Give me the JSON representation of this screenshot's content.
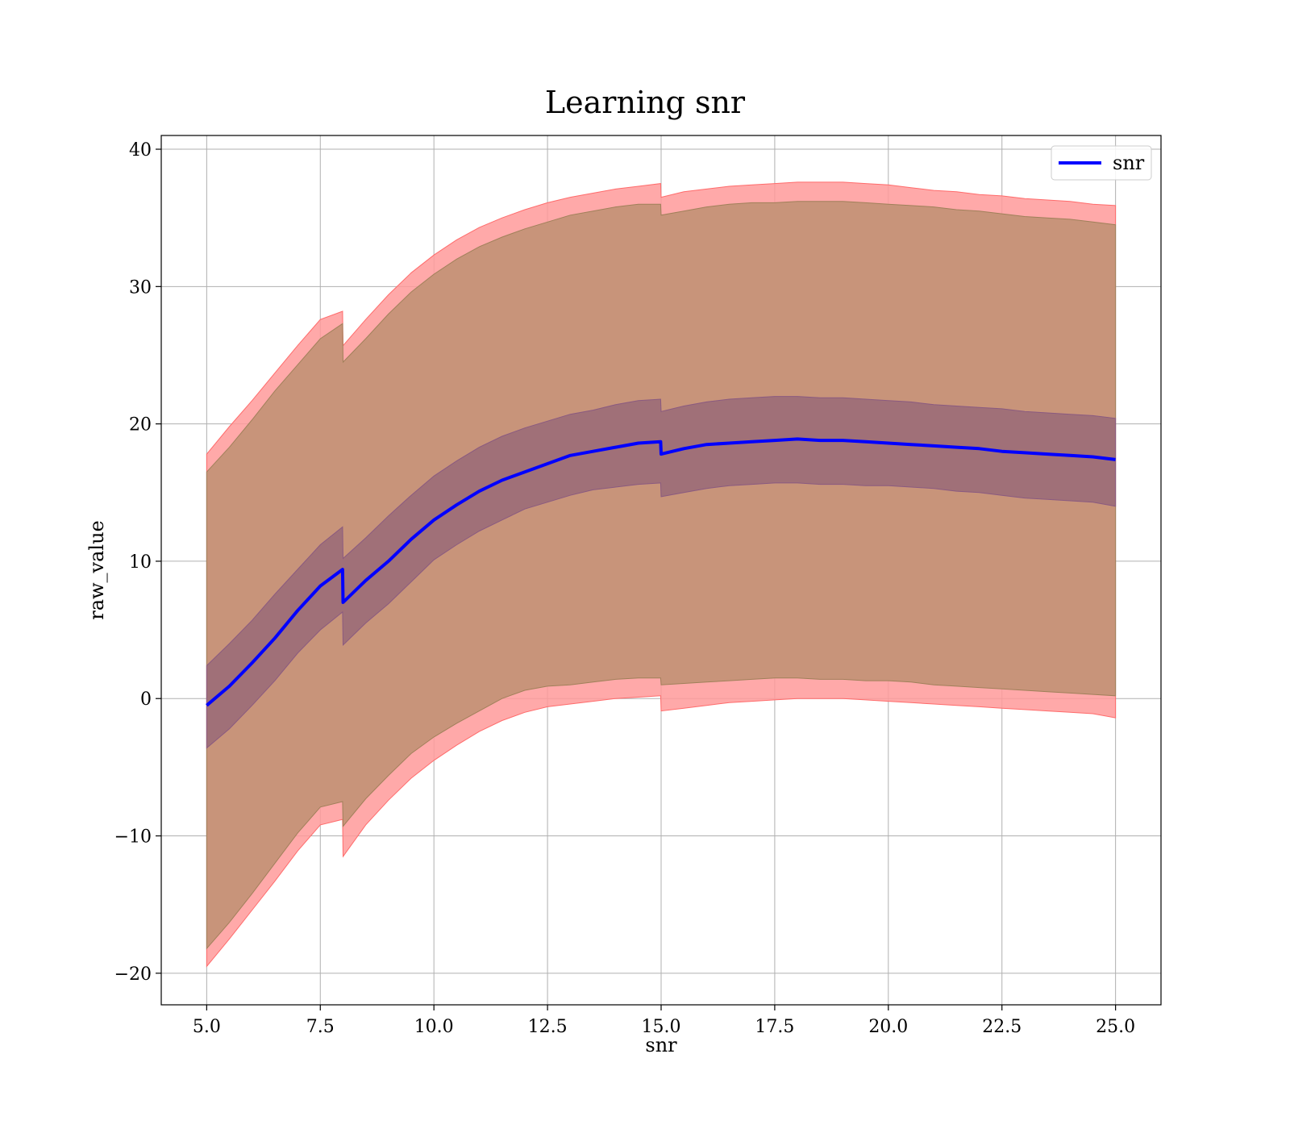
{
  "chart_data": {
    "type": "line",
    "title": "Learning snr",
    "xlabel": "snr",
    "ylabel": "raw_value",
    "xlim": [
      4.0,
      26.0
    ],
    "ylim": [
      -22.3,
      41
    ],
    "x_ticks": [
      5.0,
      7.5,
      10.0,
      12.5,
      15.0,
      17.5,
      20.0,
      22.5,
      25.0
    ],
    "x_tick_labels": [
      "5.0",
      "7.5",
      "10.0",
      "12.5",
      "15.0",
      "17.5",
      "20.0",
      "22.5",
      "25.0"
    ],
    "y_ticks": [
      -20,
      -10,
      0,
      10,
      20,
      30,
      40
    ],
    "y_tick_labels": [
      "−20",
      "−10",
      "0",
      "10",
      "20",
      "30",
      "40"
    ],
    "grid": true,
    "legend": {
      "position": "top-right",
      "entries": [
        "snr"
      ]
    },
    "colors": {
      "mean_line": "#0000ff",
      "outer_band": "#ff9a9a",
      "mid_band": "#c8947a",
      "inner_band": "#a07078",
      "grid": "#b0b0b0"
    },
    "series": [
      {
        "name": "snr",
        "x": [
          5.0,
          5.5,
          6.0,
          6.5,
          7.0,
          7.5,
          7.99,
          8.0,
          8.5,
          9.0,
          9.5,
          10.0,
          10.5,
          11.0,
          11.5,
          12.0,
          12.5,
          13.0,
          13.5,
          14.0,
          14.5,
          14.99,
          15.0,
          15.5,
          16.0,
          16.5,
          17.0,
          17.5,
          18.0,
          18.5,
          19.0,
          19.5,
          20.0,
          20.5,
          21.0,
          21.5,
          22.0,
          22.5,
          23.0,
          23.5,
          24.0,
          24.5,
          25.0
        ],
        "mean": [
          -0.5,
          0.9,
          2.6,
          4.4,
          6.4,
          8.2,
          9.4,
          7.0,
          8.6,
          10.0,
          11.6,
          13.0,
          14.1,
          15.1,
          15.9,
          16.5,
          17.1,
          17.7,
          18.0,
          18.3,
          18.6,
          18.7,
          17.8,
          18.2,
          18.5,
          18.6,
          18.7,
          18.8,
          18.9,
          18.8,
          18.8,
          18.7,
          18.6,
          18.5,
          18.4,
          18.3,
          18.2,
          18.0,
          17.9,
          17.8,
          17.7,
          17.6,
          17.4
        ],
        "inner_lower": [
          -3.6,
          -2.2,
          -0.5,
          1.3,
          3.3,
          5.0,
          6.3,
          3.9,
          5.5,
          6.9,
          8.5,
          10.1,
          11.2,
          12.2,
          13.0,
          13.8,
          14.3,
          14.8,
          15.2,
          15.4,
          15.6,
          15.7,
          14.7,
          15.0,
          15.3,
          15.5,
          15.6,
          15.7,
          15.7,
          15.6,
          15.6,
          15.5,
          15.5,
          15.4,
          15.3,
          15.1,
          15.0,
          14.8,
          14.6,
          14.5,
          14.4,
          14.3,
          14.0
        ],
        "inner_upper": [
          2.4,
          4.0,
          5.7,
          7.6,
          9.4,
          11.2,
          12.5,
          10.2,
          11.7,
          13.3,
          14.8,
          16.2,
          17.3,
          18.3,
          19.1,
          19.7,
          20.2,
          20.7,
          21.0,
          21.4,
          21.7,
          21.8,
          20.9,
          21.3,
          21.6,
          21.8,
          21.9,
          22.0,
          22.0,
          21.9,
          21.9,
          21.8,
          21.7,
          21.6,
          21.4,
          21.3,
          21.2,
          21.1,
          20.9,
          20.8,
          20.7,
          20.6,
          20.4
        ],
        "mid_lower": [
          -18.2,
          -16.3,
          -14.2,
          -12.0,
          -9.8,
          -7.9,
          -7.5,
          -9.3,
          -7.3,
          -5.6,
          -4.0,
          -2.8,
          -1.8,
          -0.9,
          0.0,
          0.6,
          0.9,
          1.0,
          1.2,
          1.4,
          1.5,
          1.5,
          1.0,
          1.1,
          1.2,
          1.3,
          1.4,
          1.5,
          1.5,
          1.4,
          1.4,
          1.3,
          1.3,
          1.2,
          1.0,
          0.9,
          0.8,
          0.7,
          0.6,
          0.5,
          0.4,
          0.3,
          0.2
        ],
        "mid_upper": [
          16.5,
          18.3,
          20.3,
          22.4,
          24.3,
          26.2,
          27.3,
          24.5,
          26.2,
          28.0,
          29.6,
          30.9,
          32.0,
          32.9,
          33.6,
          34.2,
          34.7,
          35.2,
          35.5,
          35.8,
          36.0,
          36.0,
          35.2,
          35.5,
          35.8,
          36.0,
          36.1,
          36.1,
          36.2,
          36.2,
          36.2,
          36.1,
          36.0,
          35.9,
          35.8,
          35.6,
          35.5,
          35.3,
          35.1,
          35.0,
          34.9,
          34.7,
          34.5
        ],
        "outer_lower": [
          -19.5,
          -17.5,
          -15.4,
          -13.3,
          -11.1,
          -9.2,
          -8.8,
          -11.5,
          -9.2,
          -7.4,
          -5.8,
          -4.5,
          -3.4,
          -2.4,
          -1.6,
          -1.0,
          -0.6,
          -0.4,
          -0.2,
          0.0,
          0.1,
          0.2,
          -0.9,
          -0.7,
          -0.5,
          -0.3,
          -0.2,
          -0.1,
          0.0,
          0.0,
          0.0,
          -0.1,
          -0.2,
          -0.3,
          -0.4,
          -0.5,
          -0.6,
          -0.7,
          -0.8,
          -0.9,
          -1.0,
          -1.1,
          -1.4
        ],
        "outer_upper": [
          17.8,
          19.8,
          21.7,
          23.7,
          25.7,
          27.6,
          28.2,
          25.7,
          27.6,
          29.4,
          31.0,
          32.3,
          33.4,
          34.3,
          35.0,
          35.6,
          36.1,
          36.5,
          36.8,
          37.1,
          37.3,
          37.5,
          36.5,
          36.9,
          37.1,
          37.3,
          37.4,
          37.5,
          37.6,
          37.6,
          37.6,
          37.5,
          37.4,
          37.2,
          37.0,
          36.9,
          36.7,
          36.6,
          36.4,
          36.3,
          36.2,
          36.0,
          35.9
        ]
      }
    ]
  }
}
